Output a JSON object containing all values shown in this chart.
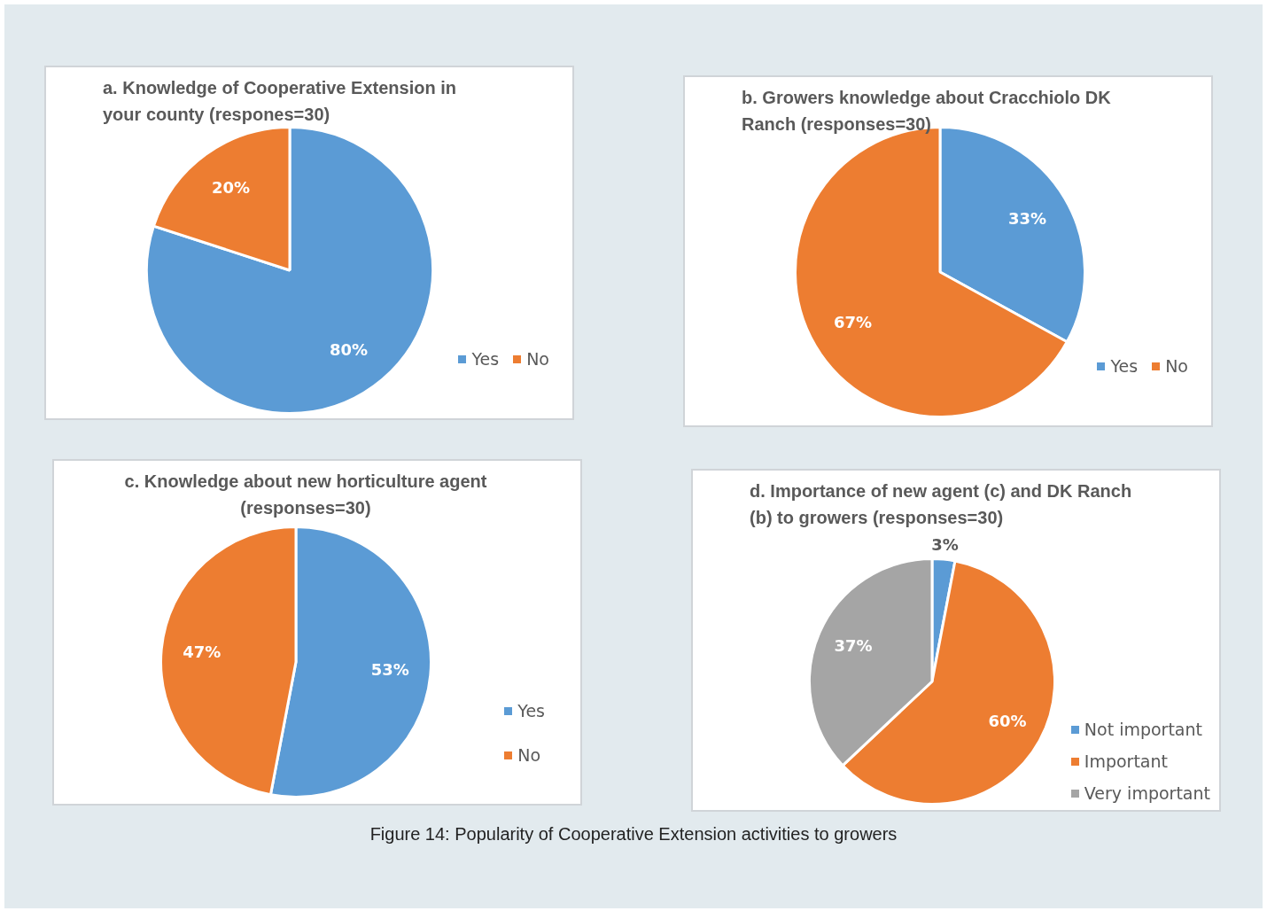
{
  "chart_data": [
    {
      "type": "pie",
      "title": "a. Knowledge of Cooperative Extension in your county (respones=30)",
      "categories": [
        "Yes",
        "No"
      ],
      "values": [
        80,
        20
      ],
      "colors": [
        "#5b9bd5",
        "#ed7d31"
      ],
      "value_labels": [
        "80%",
        "20%"
      ],
      "legend": "bottom right"
    },
    {
      "type": "pie",
      "title": "b. Growers knowledge about Cracchiolo DK Ranch (responses=30)",
      "categories": [
        "Yes",
        "No"
      ],
      "values": [
        33,
        67
      ],
      "colors": [
        "#5b9bd5",
        "#ed7d31"
      ],
      "value_labels": [
        "33%",
        "67%"
      ],
      "legend": "bottom right"
    },
    {
      "type": "pie",
      "title": "c. Knowledge about new horticulture agent (responses=30)",
      "categories": [
        "Yes",
        "No"
      ],
      "values": [
        53,
        47
      ],
      "colors": [
        "#5b9bd5",
        "#ed7d31"
      ],
      "value_labels": [
        "53%",
        "47%"
      ],
      "legend": "right"
    },
    {
      "type": "pie",
      "title": "d. Importance of new agent (c) and DK Ranch (b) to growers (responses=30)",
      "categories": [
        "Not important",
        "Important",
        "Very important"
      ],
      "values": [
        3,
        60,
        37
      ],
      "colors": [
        "#5b9bd5",
        "#ed7d31",
        "#a5a5a5"
      ],
      "value_labels": [
        "3%",
        "60%",
        "37%"
      ],
      "legend": "bottom right",
      "annotations": [
        "Figure 14: Popularity of Cooperative Extension activities to growers"
      ]
    }
  ]
}
